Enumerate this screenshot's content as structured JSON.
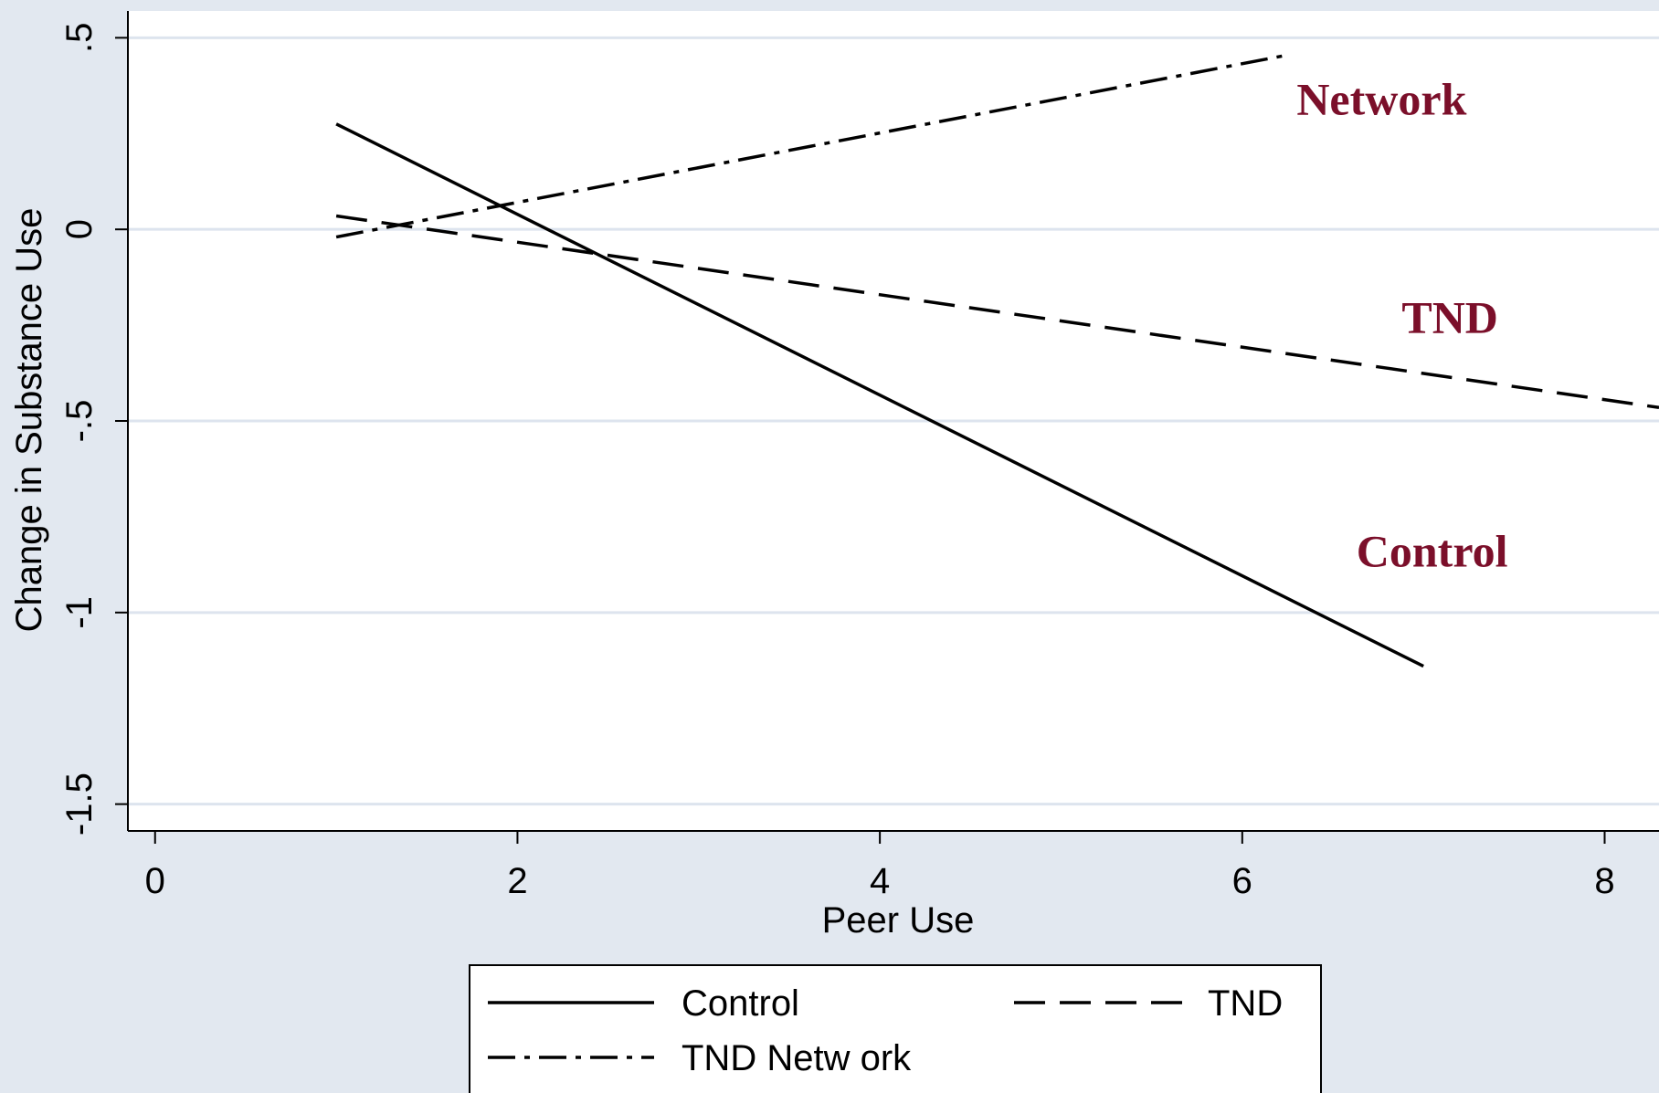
{
  "chart_data": {
    "type": "line",
    "title": "",
    "xlabel": "Peer Use",
    "ylabel": "Change in Substance Use",
    "xlim": [
      -0.15,
      8.3
    ],
    "ylim": [
      -1.57,
      0.57
    ],
    "xticks": [
      0,
      2,
      4,
      6,
      8
    ],
    "xtick_labels": [
      "0",
      "2",
      "4",
      "6",
      "8"
    ],
    "yticks": [
      0.5,
      0,
      -0.5,
      -1,
      -1.5
    ],
    "ytick_labels": [
      ".5",
      "0",
      "-.5",
      "-1",
      "-1.5"
    ],
    "grid": "horizontal",
    "legend_position": "bottom",
    "series": [
      {
        "name": "Control",
        "style": "solid",
        "color": "#000000",
        "x": [
          1,
          7
        ],
        "y": [
          0.275,
          -1.14
        ]
      },
      {
        "name": "TND",
        "style": "dashed",
        "color": "#000000",
        "x": [
          1,
          8.3
        ],
        "y": [
          0.035,
          -0.465
        ]
      },
      {
        "name": "TND Netw ork",
        "style": "dashdot",
        "color": "#000000",
        "x": [
          1,
          6.25
        ],
        "y": [
          -0.02,
          0.455
        ]
      }
    ],
    "annotations": [
      {
        "text": "Network",
        "x": 6.3,
        "y": 0.3,
        "color": "#7b0f2a"
      },
      {
        "text": "TND",
        "x": 6.88,
        "y": -0.27,
        "color": "#7b0f2a"
      },
      {
        "text": "Control",
        "x": 6.63,
        "y": -0.88,
        "color": "#7b0f2a"
      }
    ]
  }
}
